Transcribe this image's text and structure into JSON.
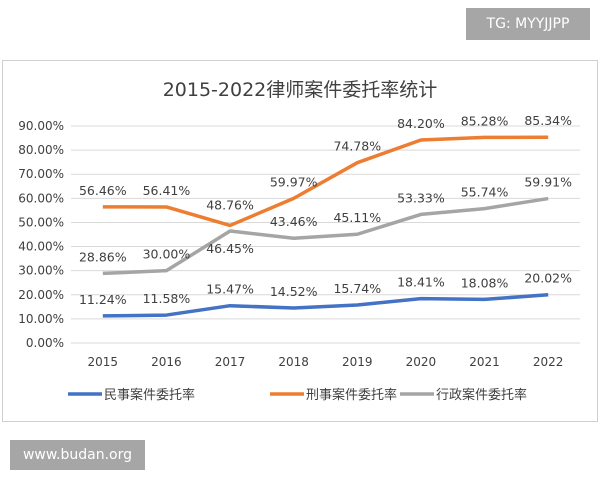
{
  "watermarks": {
    "top": "TG: MYYJJPP",
    "bottom": "www.budan.org"
  },
  "chart_data": {
    "type": "line",
    "title": "2015-2022律师案件委托率统计",
    "categories": [
      "2015",
      "2016",
      "2017",
      "2018",
      "2019",
      "2020",
      "2021",
      "2022"
    ],
    "ylim": [
      0,
      90
    ],
    "yticks": [
      "0.00%",
      "10.00%",
      "20.00%",
      "30.00%",
      "40.00%",
      "50.00%",
      "60.00%",
      "70.00%",
      "80.00%",
      "90.00%"
    ],
    "grid": true,
    "legend": "bottom",
    "series": [
      {
        "name": "民事案件委托率",
        "color": "#4472c4",
        "values": [
          11.24,
          11.58,
          15.47,
          14.52,
          15.74,
          18.41,
          18.08,
          20.02
        ]
      },
      {
        "name": "刑事案件委托率",
        "color": "#ed7d31",
        "values": [
          56.46,
          56.41,
          48.76,
          59.97,
          74.78,
          84.2,
          85.28,
          85.34
        ]
      },
      {
        "name": "行政案件委托率",
        "color": "#a5a5a5",
        "values": [
          28.86,
          30.0,
          46.45,
          43.46,
          45.11,
          53.33,
          55.74,
          59.91
        ]
      }
    ]
  }
}
